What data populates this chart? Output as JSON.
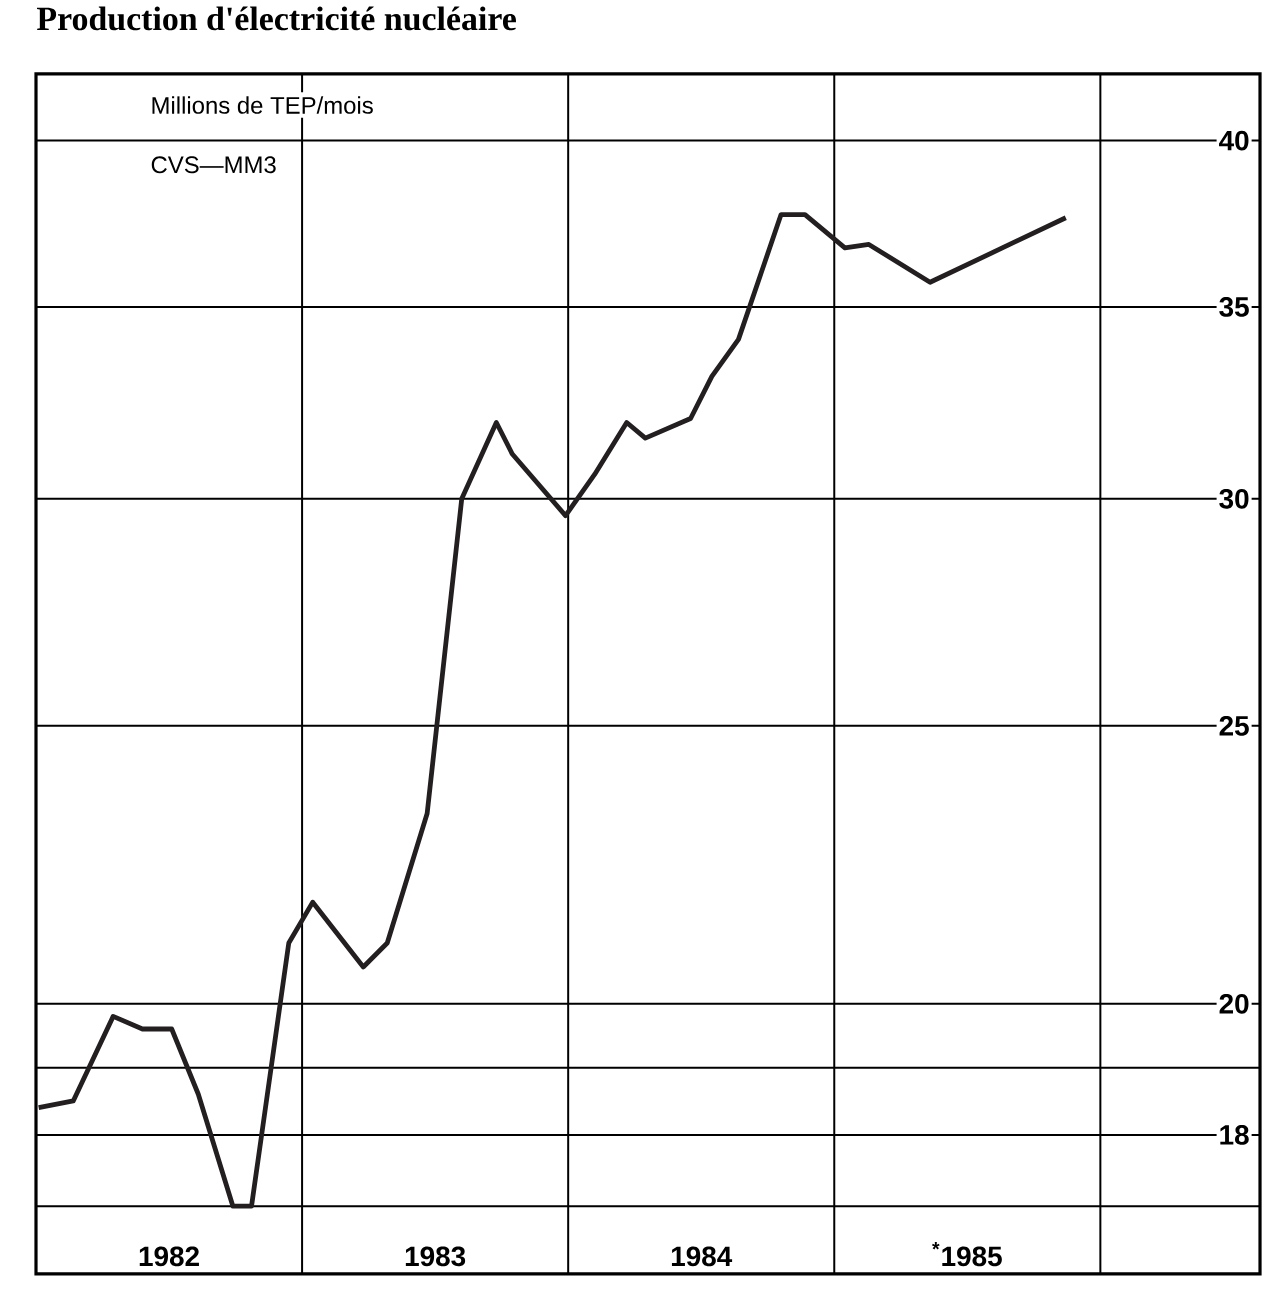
{
  "chart_data": {
    "type": "line",
    "title": "Production d'électricité nucléaire",
    "annotations": [
      "Millions de TEP/mois",
      "CVS—MM3"
    ],
    "x": [
      1982.01,
      1982.14,
      1982.29,
      1982.4,
      1982.51,
      1982.61,
      1982.74,
      1982.81,
      1982.95,
      1983.04,
      1983.23,
      1983.32,
      1983.47,
      1983.6,
      1983.73,
      1983.79,
      1983.99,
      1984.1,
      1984.22,
      1984.29,
      1984.46,
      1984.54,
      1984.64,
      1984.8,
      1984.89,
      1985.04,
      1985.13,
      1985.36,
      1985.87
    ],
    "series": [
      {
        "color": "#231f20",
        "values": [
          18.4,
          18.5,
          19.8,
          19.6,
          19.6,
          18.6,
          17.0,
          17.0,
          21.0,
          21.7,
          20.6,
          21.0,
          23.3,
          30.0,
          31.9,
          31.1,
          29.6,
          30.6,
          31.9,
          31.5,
          32.0,
          33.1,
          34.1,
          37.7,
          37.7,
          36.7,
          36.8,
          35.7,
          37.6
        ]
      }
    ],
    "xlim": [
      1982,
      1986.6
    ],
    "xticks": [
      {
        "value": 1982.5,
        "label": "1982"
      },
      {
        "value": 1983,
        "label": null
      },
      {
        "value": 1983.5,
        "label": "1983"
      },
      {
        "value": 1984,
        "label": null
      },
      {
        "value": 1984.5,
        "label": "1984"
      },
      {
        "value": 1985,
        "label": null
      },
      {
        "value": 1985.5,
        "label": "$^{*}$1985"
      },
      {
        "value": 1986,
        "label": null
      }
    ],
    "ylim": [
      16.1,
      42.2
    ],
    "yticks": [
      {
        "value": 17,
        "label": null
      },
      18,
      {
        "value": 19,
        "label": null
      },
      20,
      25,
      30,
      35,
      40
    ],
    "log": "y",
    "grid": true,
    "marker": "none",
    "line_style": "solid"
  }
}
